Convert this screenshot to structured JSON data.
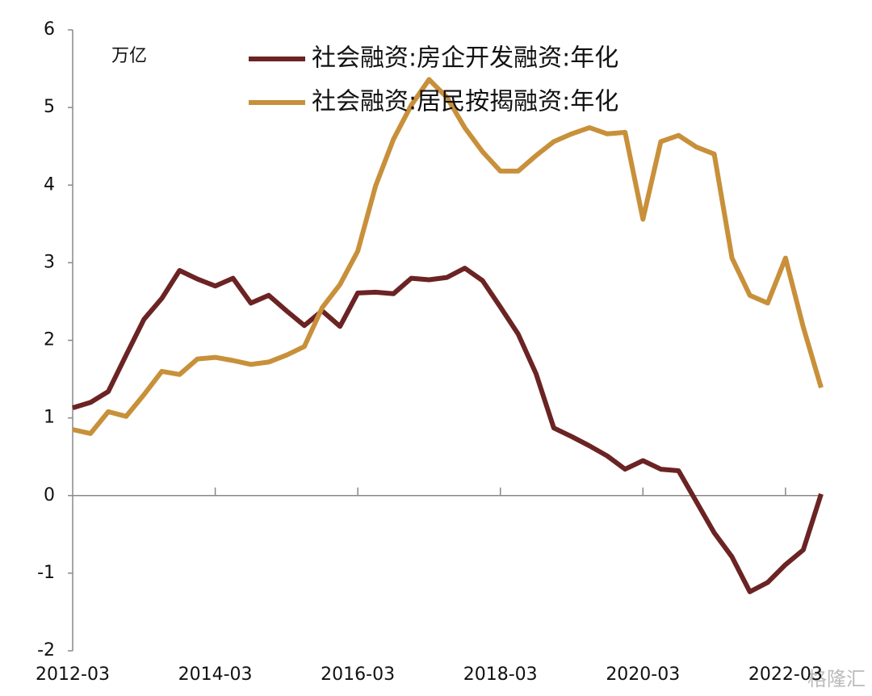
{
  "chart_data": {
    "type": "line",
    "y_label": "万亿",
    "categories": [
      "2012-03",
      null,
      null,
      null,
      null,
      null,
      null,
      null,
      "2014-03",
      null,
      null,
      null,
      null,
      null,
      null,
      null,
      "2016-03",
      null,
      null,
      null,
      null,
      null,
      null,
      null,
      "2018-03",
      null,
      null,
      null,
      null,
      null,
      null,
      null,
      "2020-03",
      null,
      null,
      null,
      null,
      null,
      null,
      null,
      "2022-03",
      null,
      null
    ],
    "series": [
      {
        "name": "社会融资:房企开发融资:年化",
        "color": "#6b2323",
        "values": [
          1.13,
          1.2,
          1.34,
          1.81,
          2.27,
          2.54,
          2.9,
          2.79,
          2.7,
          2.8,
          2.48,
          2.58,
          2.38,
          2.19,
          2.38,
          2.18,
          2.61,
          2.62,
          2.6,
          2.8,
          2.78,
          2.81,
          2.93,
          2.77,
          2.43,
          2.08,
          1.57,
          0.87,
          0.76,
          0.64,
          0.51,
          0.34,
          0.45,
          0.34,
          0.32,
          -0.08,
          -0.48,
          -0.79,
          -1.24,
          -1.12,
          -0.89,
          -0.7,
          0.02
        ]
      },
      {
        "name": "社会融资:居民按揭融资:年化",
        "color": "#c8903a",
        "values": [
          0.85,
          0.8,
          1.08,
          1.02,
          1.3,
          1.6,
          1.56,
          1.76,
          1.78,
          1.74,
          1.69,
          1.72,
          1.81,
          1.92,
          2.42,
          2.72,
          3.15,
          3.99,
          4.59,
          5.03,
          5.36,
          5.13,
          4.74,
          4.43,
          4.18,
          4.18,
          4.38,
          4.56,
          4.66,
          4.74,
          4.66,
          4.68,
          3.56,
          4.56,
          4.64,
          4.49,
          4.4,
          3.06,
          2.58,
          2.48,
          3.06,
          2.17,
          1.39
        ]
      }
    ],
    "ylim": [
      -2,
      6
    ],
    "yticks": [
      -2,
      -1,
      0,
      1,
      2,
      3,
      4,
      5,
      6
    ],
    "watermark": "格隆汇"
  }
}
